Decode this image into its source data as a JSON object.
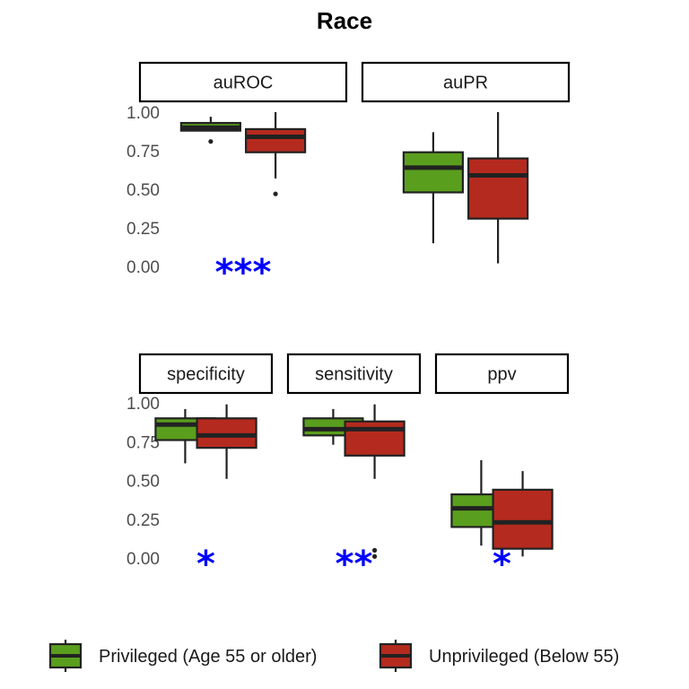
{
  "chart_data": {
    "type": "box",
    "title": "Race",
    "colors": {
      "privileged": "#5a9e1e",
      "unprivileged": "#b52a1e",
      "significance": "#0000ff"
    },
    "yticks": [
      "0.00",
      "0.25",
      "0.50",
      "0.75",
      "1.00"
    ],
    "ylim": [
      0,
      1
    ],
    "grid": false,
    "legend_position": "bottom",
    "legend": [
      {
        "key": "privileged",
        "label": "Privileged (Age 55 or older)"
      },
      {
        "key": "unprivileged",
        "label": "Unprivileged (Below 55)"
      }
    ],
    "panels": [
      {
        "label": "auROC",
        "significance": "***",
        "boxes": {
          "privileged": {
            "whisker_low": 0.88,
            "q1": 0.88,
            "median": 0.9,
            "q3": 0.93,
            "whisker_high": 0.97,
            "outliers": [
              0.81
            ]
          },
          "unprivileged": {
            "whisker_low": 0.57,
            "q1": 0.74,
            "median": 0.84,
            "q3": 0.89,
            "whisker_high": 1.0,
            "outliers": [
              0.47
            ]
          }
        }
      },
      {
        "label": "auPR",
        "significance": "",
        "boxes": {
          "privileged": {
            "whisker_low": 0.15,
            "q1": 0.48,
            "median": 0.64,
            "q3": 0.74,
            "whisker_high": 0.87,
            "outliers": []
          },
          "unprivileged": {
            "whisker_low": 0.02,
            "q1": 0.31,
            "median": 0.59,
            "q3": 0.7,
            "whisker_high": 1.0,
            "outliers": []
          }
        }
      },
      {
        "label": "specificity",
        "significance": "*",
        "boxes": {
          "privileged": {
            "whisker_low": 0.61,
            "q1": 0.76,
            "median": 0.86,
            "q3": 0.9,
            "whisker_high": 0.96,
            "outliers": []
          },
          "unprivileged": {
            "whisker_low": 0.51,
            "q1": 0.71,
            "median": 0.79,
            "q3": 0.9,
            "whisker_high": 0.99,
            "outliers": []
          }
        }
      },
      {
        "label": "sensitivity",
        "significance": "**",
        "boxes": {
          "privileged": {
            "whisker_low": 0.73,
            "q1": 0.79,
            "median": 0.83,
            "q3": 0.9,
            "whisker_high": 0.96,
            "outliers": []
          },
          "unprivileged": {
            "whisker_low": 0.51,
            "q1": 0.66,
            "median": 0.83,
            "q3": 0.88,
            "whisker_high": 0.99,
            "outliers": [
              0.01,
              0.05
            ]
          }
        }
      },
      {
        "label": "ppv",
        "significance": "*",
        "boxes": {
          "privileged": {
            "whisker_low": 0.08,
            "q1": 0.2,
            "median": 0.32,
            "q3": 0.41,
            "whisker_high": 0.63,
            "outliers": []
          },
          "unprivileged": {
            "whisker_low": 0.01,
            "q1": 0.06,
            "median": 0.23,
            "q3": 0.44,
            "whisker_high": 0.56,
            "outliers": []
          }
        }
      }
    ]
  }
}
